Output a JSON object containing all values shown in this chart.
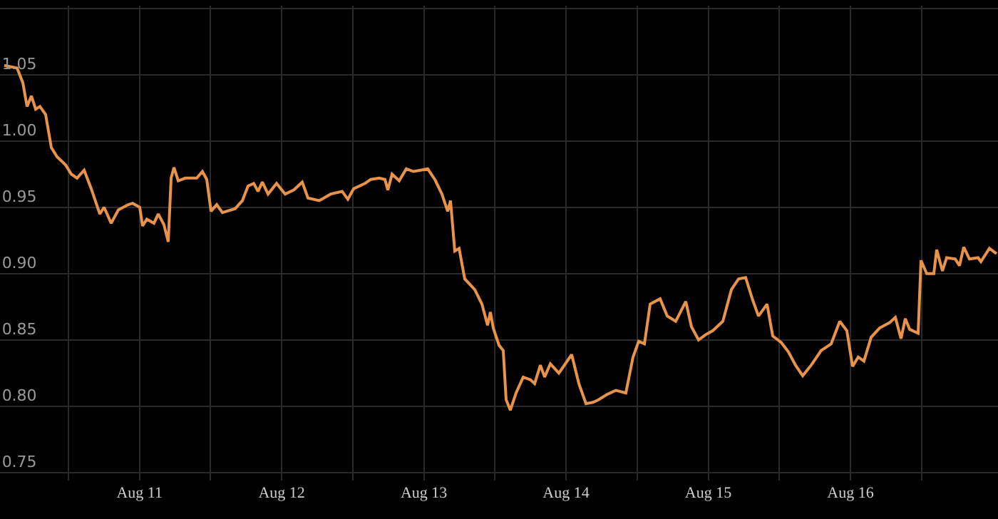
{
  "chart_data": {
    "type": "line",
    "x": [
      "--08-10T13:10",
      "--08-10T15:20",
      "--08-10T16:18",
      "--08-10T17:01",
      "--08-10T17:45",
      "--08-10T18:28",
      "--08-10T19:11",
      "--08-10T20:09",
      "--08-10T21:07",
      "--08-10T22:05",
      "--08-10T23:31",
      "--08-11T00:29",
      "--08-11T01:27",
      "--08-11T02:39",
      "--08-11T03:51",
      "--08-11T05:18",
      "--08-11T06:01",
      "--08-11T07:13",
      "--08-11T08:25",
      "--08-11T10:06",
      "--08-11T10:50",
      "--08-11T12:02",
      "--08-11T12:31",
      "--08-11T13:14",
      "--08-11T14:26",
      "--08-11T15:10",
      "--08-11T16:07",
      "--08-11T16:51",
      "--08-11T17:20",
      "--08-11T17:49",
      "--08-11T18:32",
      "--08-11T19:44",
      "--08-11T21:40",
      "--08-11T22:37",
      "--08-11T23:21",
      "--08-12T00:04",
      "--08-12T01:02",
      "--08-12T02:00",
      "--08-12T04:09",
      "--08-12T05:22",
      "--08-12T06:19",
      "--08-12T07:17",
      "--08-12T08:01",
      "--08-12T08:44",
      "--08-12T09:42",
      "--08-12T11:08",
      "--08-12T12:35",
      "--08-12T14:02",
      "--08-12T15:28",
      "--08-12T16:26",
      "--08-12T18:21",
      "--08-12T20:17",
      "--08-12T22:12",
      "--08-12T23:10",
      "--08-13T00:08",
      "--08-13T02:04",
      "--08-13T03:01",
      "--08-13T04:28",
      "--08-13T05:26",
      "--08-13T05:55",
      "--08-13T06:38",
      "--08-13T07:50",
      "--08-13T09:02",
      "--08-13T10:14",
      "--08-13T11:27",
      "--08-13T12:39",
      "--08-13T13:51",
      "--08-13T15:03",
      "--08-13T16:01",
      "--08-13T16:30",
      "--08-13T17:13",
      "--08-13T17:57",
      "--08-13T18:54",
      "--08-13T20:35",
      "--08-13T21:48",
      "--08-13T22:45",
      "--08-13T23:14",
      "--08-13T23:43",
      "--08-14T00:41",
      "--08-14T01:24",
      "--08-14T01:53",
      "--08-14T02:36",
      "--08-14T03:34",
      "--08-14T04:46",
      "--08-14T05:59",
      "--08-14T06:42",
      "--08-14T07:40",
      "--08-14T08:23",
      "--08-14T09:21",
      "--08-14T10:47",
      "--08-14T11:16",
      "--08-14T12:57",
      "--08-14T14:10",
      "--08-14T15:22",
      "--08-14T16:34",
      "--08-14T17:32",
      "--08-14T18:58",
      "--08-14T20:25",
      "--08-14T22:06",
      "--08-14T23:18",
      "--08-15T00:16",
      "--08-15T01:14",
      "--08-15T02:12",
      "--08-15T03:53",
      "--08-15T05:05",
      "--08-15T06:31",
      "--08-15T08:13",
      "--08-15T09:10",
      "--08-15T10:22",
      "--08-15T11:35",
      "--08-15T12:47",
      "--08-15T14:28",
      "--08-15T15:55",
      "--08-15T17:07",
      "--08-15T18:19",
      "--08-15T19:31",
      "--08-15T20:29",
      "--08-15T21:56",
      "--08-15T22:53",
      "--08-16T00:20",
      "--08-16T01:32",
      "--08-16T02:44",
      "--08-16T03:57",
      "--08-16T05:23",
      "--08-16T07:04",
      "--08-16T08:45",
      "--08-16T10:12",
      "--08-16T11:24",
      "--08-16T12:22",
      "--08-16T13:19",
      "--08-16T14:17",
      "--08-16T15:30",
      "--08-16T16:56",
      "--08-16T18:37",
      "--08-16T19:35",
      "--08-16T20:33",
      "--08-16T21:16",
      "--08-16T22:00",
      "--08-16T23:26",
      "--08-16T23:55",
      "--08-17T00:53",
      "--08-17T02:05",
      "--08-17T02:34",
      "--08-17T03:32",
      "--08-17T04:15",
      "--08-17T05:42",
      "--08-17T06:25",
      "--08-17T07:08",
      "--08-17T08:06",
      "--08-17T09:33",
      "--08-17T10:02",
      "--08-17T11:28",
      "--08-17T12:40"
    ],
    "series": [
      {
        "color": "#e8924a",
        "values": [
          1.057,
          1.055,
          1.044,
          1.026,
          1.034,
          1.024,
          1.026,
          1.02,
          0.995,
          0.988,
          0.982,
          0.975,
          0.972,
          0.978,
          0.964,
          0.945,
          0.95,
          0.938,
          0.948,
          0.952,
          0.953,
          0.95,
          0.936,
          0.941,
          0.938,
          0.945,
          0.937,
          0.924,
          0.972,
          0.98,
          0.97,
          0.972,
          0.972,
          0.977,
          0.971,
          0.947,
          0.952,
          0.946,
          0.949,
          0.955,
          0.966,
          0.968,
          0.962,
          0.969,
          0.96,
          0.968,
          0.96,
          0.963,
          0.969,
          0.957,
          0.955,
          0.96,
          0.962,
          0.956,
          0.964,
          0.968,
          0.971,
          0.972,
          0.971,
          0.963,
          0.975,
          0.97,
          0.979,
          0.977,
          0.978,
          0.979,
          0.971,
          0.96,
          0.947,
          0.955,
          0.917,
          0.919,
          0.896,
          0.888,
          0.877,
          0.861,
          0.871,
          0.859,
          0.846,
          0.842,
          0.805,
          0.797,
          0.81,
          0.822,
          0.82,
          0.817,
          0.831,
          0.822,
          0.832,
          0.825,
          0.828,
          0.839,
          0.817,
          0.802,
          0.803,
          0.805,
          0.809,
          0.812,
          0.81,
          0.837,
          0.849,
          0.847,
          0.877,
          0.881,
          0.868,
          0.864,
          0.879,
          0.86,
          0.85,
          0.854,
          0.857,
          0.864,
          0.888,
          0.896,
          0.897,
          0.88,
          0.868,
          0.877,
          0.853,
          0.848,
          0.841,
          0.831,
          0.823,
          0.831,
          0.842,
          0.847,
          0.864,
          0.857,
          0.83,
          0.837,
          0.834,
          0.852,
          0.859,
          0.863,
          0.867,
          0.851,
          0.866,
          0.858,
          0.855,
          0.91,
          0.9,
          0.9,
          0.918,
          0.902,
          0.912,
          0.911,
          0.906,
          0.92,
          0.911,
          0.912,
          0.909,
          0.919,
          0.915
        ]
      }
    ],
    "xlim": [
      "--08-10T12:27",
      "--08-17T12:55"
    ],
    "xticks": [
      {
        "value": "--08-11T00:00",
        "label": null
      },
      {
        "value": "--08-11T12:00",
        "label": "Aug 11"
      },
      {
        "value": "--08-12T00:00",
        "label": null
      },
      {
        "value": "--08-12T12:00",
        "label": "Aug 12"
      },
      {
        "value": "--08-13T00:00",
        "label": null
      },
      {
        "value": "--08-13T12:00",
        "label": "Aug 13"
      },
      {
        "value": "--08-14T00:00",
        "label": null
      },
      {
        "value": "--08-14T12:00",
        "label": "Aug 14"
      },
      {
        "value": "--08-15T00:00",
        "label": null
      },
      {
        "value": "--08-15T12:00",
        "label": "Aug 15"
      },
      {
        "value": "--08-16T00:00",
        "label": null
      },
      {
        "value": "--08-16T12:00",
        "label": "Aug 16"
      },
      {
        "value": "--08-17T00:00",
        "label": null
      }
    ],
    "ylim": [
      0.744,
      1.102
    ],
    "yticks": [
      {
        "value": 0.75,
        "label": "0.75"
      },
      {
        "value": 0.8,
        "label": "0.80"
      },
      {
        "value": 0.85,
        "label": "0.85"
      },
      {
        "value": 0.9,
        "label": "0.90"
      },
      {
        "value": 0.95,
        "label": "0.95"
      },
      {
        "value": 1.0,
        "label": "1.00"
      },
      {
        "value": 1.05,
        "label": "1.05"
      },
      {
        "value": 1.1,
        "label": null
      }
    ],
    "grid": true,
    "legend": false,
    "marker": "none",
    "line_style": "solid"
  }
}
